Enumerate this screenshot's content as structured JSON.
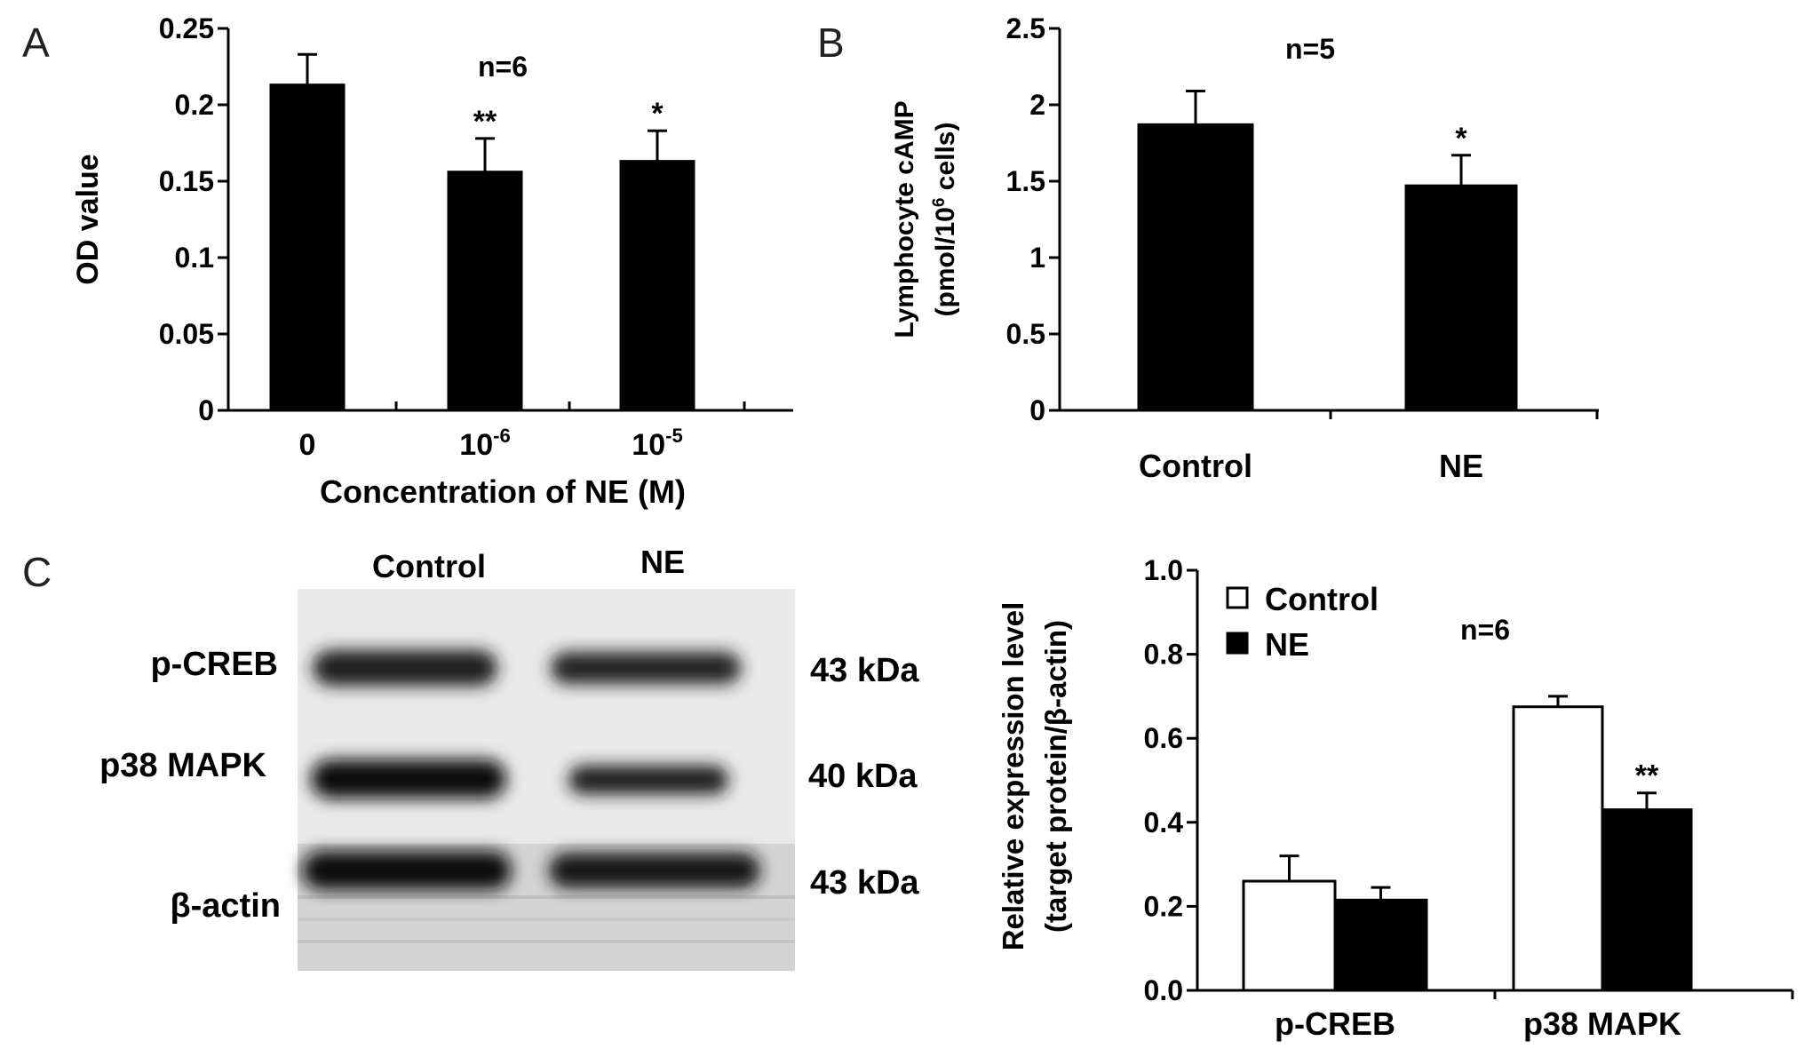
{
  "panels": {
    "a": "A",
    "b": "B",
    "c": "C"
  },
  "chart_data": [
    {
      "id": "A",
      "type": "bar",
      "n_label": "n=6",
      "categories": [
        "0",
        "10",
        "10"
      ],
      "category_superscripts": [
        "",
        "-6",
        "-5"
      ],
      "values": [
        0.213,
        0.156,
        0.163
      ],
      "errors": [
        0.02,
        0.022,
        0.02
      ],
      "significance": [
        "",
        "**",
        "*"
      ],
      "xlabel": "Concentration of NE (M)",
      "ylabel": "OD value",
      "ylim": [
        0,
        0.25
      ],
      "yticks": [
        "0",
        "0.05",
        "0.1",
        "0.15",
        "0.2",
        "0.25"
      ],
      "colors": {
        "bar": "#000000"
      }
    },
    {
      "id": "B",
      "type": "bar",
      "n_label": "n=5",
      "categories": [
        "Control",
        "NE"
      ],
      "values": [
        1.87,
        1.47
      ],
      "errors": [
        0.22,
        0.2
      ],
      "significance": [
        "",
        "*"
      ],
      "ylabel_line1": "Lymphocyte cAMP",
      "ylabel_line2_a": "(pmol/10",
      "ylabel_line2_sup": "6",
      "ylabel_line2_b": " cells)",
      "ylim": [
        0,
        2.5
      ],
      "yticks": [
        "0",
        "0.5",
        "1",
        "1.5",
        "2",
        "2.5"
      ],
      "colors": {
        "bar": "#000000"
      }
    },
    {
      "id": "C",
      "type": "bar",
      "n_label": "n=6",
      "categories": [
        "p-CREB",
        "p38 MAPK"
      ],
      "series": [
        {
          "name": "Control",
          "values": [
            0.26,
            0.675
          ],
          "errors": [
            0.06,
            0.025
          ],
          "significance": [
            "",
            ""
          ]
        },
        {
          "name": "NE",
          "values": [
            0.215,
            0.43
          ],
          "errors": [
            0.03,
            0.04
          ],
          "significance": [
            "",
            "**"
          ]
        }
      ],
      "ylabel_line1": "Relative expression level",
      "ylabel_line2": "(target protein/β-actin)",
      "ylim": [
        0,
        1.0
      ],
      "yticks": [
        "0.0",
        "0.2",
        "0.4",
        "0.6",
        "0.8",
        "1.0"
      ],
      "legend": "top-left",
      "colors": {
        "Control": "#ffffff",
        "NE": "#000000"
      }
    }
  ],
  "western_blot": {
    "lane_labels": [
      "Control",
      "NE"
    ],
    "rows": [
      {
        "protein": "p-CREB",
        "mw": "43 kDa"
      },
      {
        "protein": "p38 MAPK",
        "mw": "40 kDa"
      },
      {
        "protein": "β-actin",
        "mw": "43 kDa"
      }
    ]
  }
}
